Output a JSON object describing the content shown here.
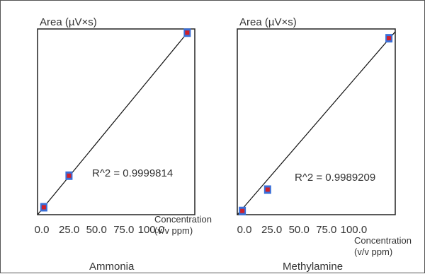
{
  "chart_data": [
    {
      "type": "scatter",
      "title": "Ammonia",
      "ylabel": "Area (µV×s)",
      "xlabel_line1": "Concentration",
      "xlabel_line2": "(v/v ppm)",
      "x_ticks": [
        "0.0",
        "25.0",
        "50.0",
        "75.0",
        "100.0"
      ],
      "xlim": [
        0,
        125
      ],
      "ylim": [
        0,
        100
      ],
      "annotation": "R^2 = 0.9999814",
      "points": [
        {
          "x": 5,
          "y": 4
        },
        {
          "x": 25,
          "y": 21
        },
        {
          "x": 119,
          "y": 98
        }
      ],
      "fit_line": [
        [
          0,
          0
        ],
        [
          125,
          102.8
        ]
      ],
      "colors": {
        "marker_outer": "#3a6fd8",
        "marker_inner": "#d0202a",
        "line": "#111111"
      }
    },
    {
      "type": "scatter",
      "title": "Methylamine",
      "ylabel": "Area (µV×s)",
      "xlabel_line1": "Concentration",
      "xlabel_line2": "(v/v ppm)",
      "x_ticks": [
        "0.0",
        "25.0",
        "50.0",
        "75.0",
        "100.0"
      ],
      "xlim": [
        0,
        125
      ],
      "ylim": [
        0,
        100
      ],
      "annotation": "R^2 = 0.9989209",
      "points": [
        {
          "x": 4,
          "y": 2
        },
        {
          "x": 24,
          "y": 13.5
        },
        {
          "x": 120,
          "y": 95
        }
      ],
      "fit_line": [
        [
          0,
          0
        ],
        [
          125,
          98.5
        ]
      ],
      "colors": {
        "marker_outer": "#3a6fd8",
        "marker_inner": "#d0202a",
        "line": "#111111"
      }
    }
  ]
}
